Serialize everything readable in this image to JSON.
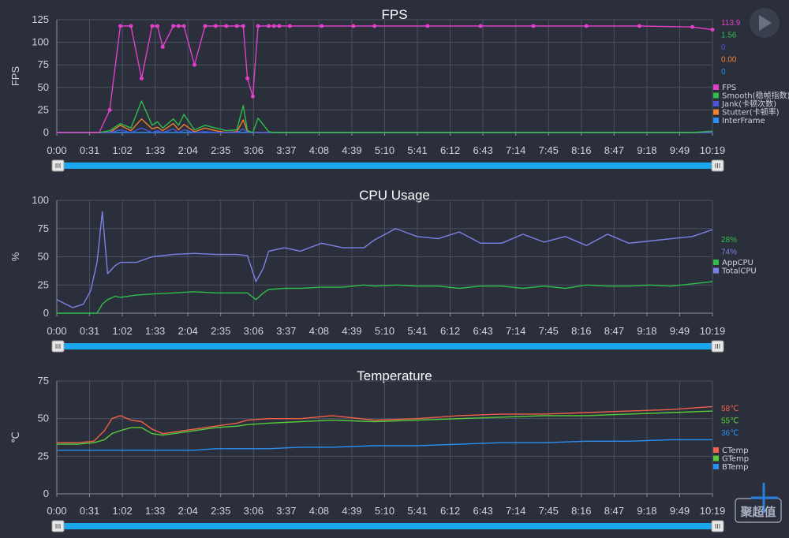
{
  "chart_data": [
    {
      "type": "line",
      "title": "FPS",
      "ylabel": "FPS",
      "ylim": [
        0,
        125
      ],
      "yticks": [
        "0",
        "25",
        "50",
        "75",
        "100",
        "125"
      ],
      "x_ticks": [
        "0:00",
        "0:31",
        "1:02",
        "1:33",
        "2:04",
        "2:35",
        "3:06",
        "3:37",
        "4:08",
        "4:39",
        "5:10",
        "5:41",
        "6:12",
        "6:43",
        "7:14",
        "7:45",
        "8:16",
        "8:47",
        "9:18",
        "9:49",
        "10:19"
      ],
      "x_seconds": [
        0,
        20,
        40,
        50,
        60,
        70,
        80,
        90,
        95,
        100,
        110,
        115,
        120,
        130,
        140,
        150,
        160,
        170,
        176,
        180,
        185,
        190,
        200,
        205,
        210,
        220,
        250,
        280,
        300,
        350,
        400,
        450,
        500,
        550,
        600,
        619
      ],
      "series": [
        {
          "name": "FPS",
          "color": "#e040c8",
          "current": "113.9",
          "values": [
            0,
            0,
            0,
            25,
            118,
            118,
            60,
            118,
            118,
            95,
            118,
            118,
            118,
            75,
            118,
            118,
            118,
            118,
            118,
            60,
            40,
            118,
            118,
            118,
            118,
            118,
            118,
            118,
            118,
            118,
            118,
            118,
            118,
            118,
            117,
            114
          ]
        },
        {
          "name": "Smooth(稳帧指数)",
          "color": "#2ebd4a",
          "current": "1.56",
          "values": [
            0,
            0,
            0,
            2,
            10,
            5,
            35,
            8,
            12,
            5,
            15,
            8,
            20,
            3,
            8,
            5,
            2,
            3,
            30,
            2,
            0,
            16,
            1,
            0,
            0,
            0,
            0,
            0,
            0,
            0,
            0,
            0,
            0,
            0,
            0,
            1.56
          ]
        },
        {
          "name": "Jank(卡顿次数)",
          "color": "#4b56e0",
          "current": "0",
          "values": [
            0,
            0,
            0,
            0,
            3,
            0,
            5,
            0,
            2,
            0,
            4,
            0,
            3,
            0,
            1,
            0,
            0,
            0,
            4,
            0,
            0,
            0,
            0,
            0,
            0,
            0,
            0,
            0,
            0,
            0,
            0,
            0,
            0,
            0,
            0,
            0
          ]
        },
        {
          "name": "Stutter(卡顿率)",
          "color": "#f08030",
          "current": "0.00",
          "values": [
            0,
            0,
            0,
            0,
            8,
            2,
            15,
            4,
            6,
            2,
            10,
            3,
            9,
            1,
            5,
            2,
            0,
            1,
            14,
            1,
            0,
            0,
            0,
            0,
            0,
            0,
            0,
            0,
            0,
            0,
            0,
            0,
            0,
            0,
            0,
            0
          ]
        },
        {
          "name": "InterFrame",
          "color": "#2a8ff0",
          "current": "0",
          "values": [
            0,
            0,
            0,
            0,
            0,
            0,
            0,
            0,
            0,
            0,
            0,
            0,
            0,
            0,
            0,
            0,
            0,
            0,
            0,
            0,
            0,
            0,
            0,
            0,
            0,
            0,
            0,
            0,
            0,
            0,
            0,
            0,
            0,
            0,
            0,
            0
          ]
        }
      ]
    },
    {
      "type": "line",
      "title": "CPU Usage",
      "ylabel": "%",
      "ylim": [
        0,
        100
      ],
      "yticks": [
        "0",
        "25",
        "50",
        "75",
        "100"
      ],
      "x_ticks": [
        "0:00",
        "0:31",
        "1:02",
        "1:33",
        "2:04",
        "2:35",
        "3:06",
        "3:37",
        "4:08",
        "4:39",
        "5:10",
        "5:41",
        "6:12",
        "6:43",
        "7:14",
        "7:45",
        "8:16",
        "8:47",
        "9:18",
        "9:49",
        "10:19"
      ],
      "x_seconds": [
        0,
        15,
        25,
        32,
        38,
        43,
        48,
        55,
        60,
        75,
        90,
        110,
        130,
        150,
        170,
        180,
        188,
        195,
        200,
        215,
        230,
        250,
        270,
        290,
        300,
        320,
        340,
        360,
        380,
        400,
        420,
        440,
        460,
        480,
        500,
        520,
        540,
        560,
        580,
        600,
        619
      ],
      "series": [
        {
          "name": "AppCPU",
          "color": "#2ebd4a",
          "current": "28%",
          "values": [
            0,
            0,
            0,
            0,
            0,
            8,
            12,
            15,
            14,
            16,
            17,
            18,
            19,
            18,
            18,
            18,
            12,
            18,
            21,
            22,
            22,
            23,
            23,
            25,
            24,
            25,
            24,
            24,
            22,
            24,
            24,
            22,
            24,
            22,
            25,
            24,
            24,
            25,
            24,
            26,
            28
          ]
        },
        {
          "name": "TotalCPU",
          "color": "#7b82e6",
          "current": "74%",
          "values": [
            12,
            5,
            8,
            20,
            45,
            90,
            35,
            42,
            45,
            45,
            50,
            52,
            53,
            52,
            52,
            51,
            28,
            40,
            55,
            58,
            55,
            62,
            58,
            58,
            65,
            75,
            68,
            66,
            72,
            62,
            62,
            70,
            63,
            68,
            60,
            70,
            62,
            64,
            66,
            68,
            74
          ]
        }
      ]
    },
    {
      "type": "line",
      "title": "Temperature",
      "ylabel": "℃",
      "ylim": [
        0,
        75
      ],
      "yticks": [
        "0",
        "25",
        "50",
        "75"
      ],
      "x_ticks": [
        "0:00",
        "0:31",
        "1:02",
        "1:33",
        "2:04",
        "2:35",
        "3:06",
        "3:37",
        "4:08",
        "4:39",
        "5:10",
        "5:41",
        "6:12",
        "6:43",
        "7:14",
        "7:45",
        "8:16",
        "8:47",
        "9:18",
        "9:49",
        "10:19"
      ],
      "x_seconds": [
        0,
        20,
        35,
        45,
        52,
        60,
        70,
        80,
        90,
        100,
        110,
        130,
        150,
        170,
        180,
        200,
        230,
        260,
        300,
        340,
        380,
        420,
        460,
        500,
        540,
        580,
        619
      ],
      "series": [
        {
          "name": "CTemp",
          "color": "#f0604a",
          "current": "58℃",
          "values": [
            34,
            34,
            35,
            42,
            50,
            52,
            49,
            48,
            43,
            40,
            41,
            43,
            45,
            47,
            49,
            50,
            50,
            52,
            49,
            50,
            52,
            53,
            53,
            54,
            55,
            56,
            58
          ]
        },
        {
          "name": "GTemp",
          "color": "#56cc3a",
          "current": "55℃",
          "values": [
            33,
            33,
            34,
            36,
            40,
            42,
            44,
            44,
            40,
            39,
            40,
            42,
            44,
            45,
            46,
            47,
            48,
            49,
            48,
            49,
            50,
            51,
            52,
            52,
            53,
            54,
            55
          ]
        },
        {
          "name": "BTemp",
          "color": "#2a8ff0",
          "current": "36℃",
          "values": [
            29,
            29,
            29,
            29,
            29,
            29,
            29,
            29,
            29,
            29,
            29,
            29,
            30,
            30,
            30,
            30,
            31,
            31,
            32,
            32,
            33,
            34,
            34,
            35,
            35,
            36,
            36
          ]
        }
      ]
    }
  ],
  "watermark": "聚超值",
  "play_icon": "play-icon"
}
